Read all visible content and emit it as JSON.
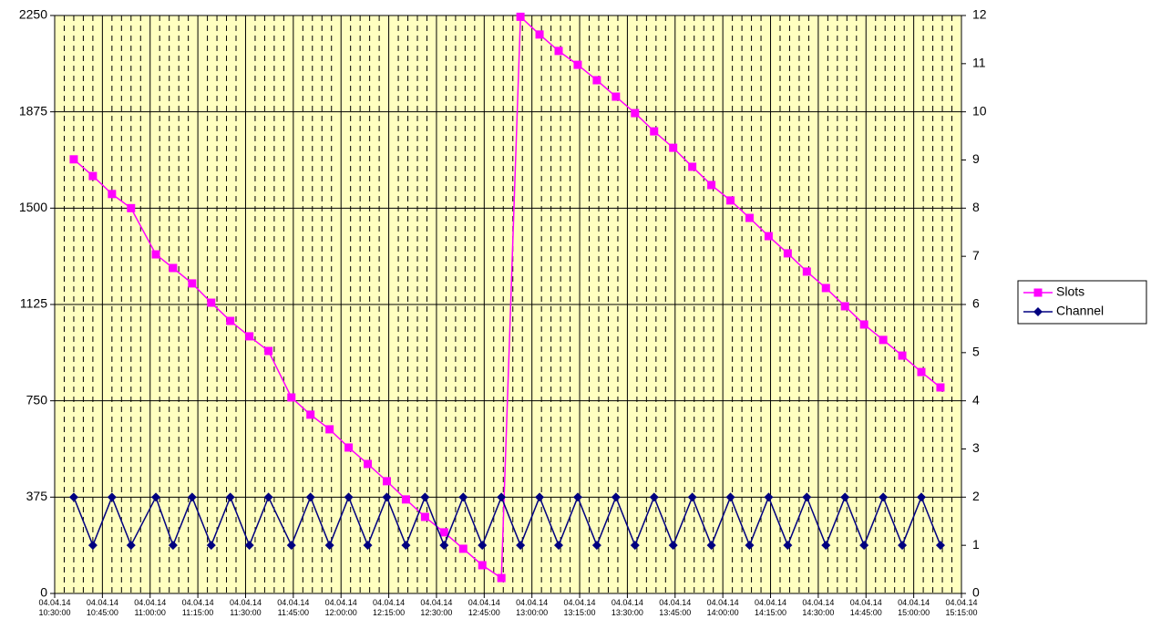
{
  "chart_data": {
    "type": "line",
    "x": [
      10.6,
      10.7,
      10.8,
      10.9,
      11.03,
      11.12,
      11.22,
      11.32,
      11.42,
      11.52,
      11.62,
      11.74,
      11.84,
      11.94,
      12.04,
      12.14,
      12.24,
      12.34,
      12.44,
      12.54,
      12.64,
      12.74,
      12.84,
      12.94,
      13.04,
      13.14,
      13.24,
      13.34,
      13.44,
      13.54,
      13.64,
      13.74,
      13.84,
      13.94,
      14.04,
      14.14,
      14.24,
      14.34,
      14.44,
      14.54,
      14.64,
      14.74,
      14.84,
      14.94,
      15.04,
      15.14
    ],
    "xlim": [
      10.5,
      15.25
    ],
    "xticks": [
      {
        "value": 10.5,
        "label": "04.04.14 10:30:00"
      },
      {
        "value": 10.75,
        "label": "04.04.14 10:45:00"
      },
      {
        "value": 11.0,
        "label": "04.04.14 11:00:00"
      },
      {
        "value": 11.25,
        "label": "04.04.14 11:15:00"
      },
      {
        "value": 11.5,
        "label": "04.04.14 11:30:00"
      },
      {
        "value": 11.75,
        "label": "04.04.14 11:45:00"
      },
      {
        "value": 12.0,
        "label": "04.04.14 12:00:00"
      },
      {
        "value": 12.25,
        "label": "04.04.14 12:15:00"
      },
      {
        "value": 12.5,
        "label": "04.04.14 12:30:00"
      },
      {
        "value": 12.75,
        "label": "04.04.14 12:45:00"
      },
      {
        "value": 13.0,
        "label": "04.04.14 13:00:00"
      },
      {
        "value": 13.25,
        "label": "04.04.14 13:15:00"
      },
      {
        "value": 13.5,
        "label": "04.04.14 13:30:00"
      },
      {
        "value": 13.75,
        "label": "04.04.14 13:45:00"
      },
      {
        "value": 14.0,
        "label": "04.04.14 14:00:00"
      },
      {
        "value": 14.25,
        "label": "04.04.14 14:15:00"
      },
      {
        "value": 14.5,
        "label": "04.04.14 14:30:00"
      },
      {
        "value": 14.75,
        "label": "04.04.14 14:45:00"
      },
      {
        "value": 15.0,
        "label": "04.04.14 15:00:00"
      },
      {
        "value": 15.25,
        "label": "04.04.14 15:15:00"
      }
    ],
    "ylim": [
      0,
      2250
    ],
    "yticks": [
      0,
      375,
      750,
      1125,
      1500,
      1875,
      2250
    ],
    "y2lim": [
      0,
      12
    ],
    "y2ticks": [
      0,
      1,
      2,
      3,
      4,
      5,
      6,
      7,
      8,
      9,
      10,
      11,
      12
    ],
    "grid": true,
    "legend": "right",
    "series": [
      {
        "name": "Slots",
        "color": "#ff00ff",
        "marker": "square",
        "values": [
          1690,
          1625,
          1555,
          1500,
          1320,
          1267,
          1207,
          1132,
          1061,
          1001,
          944,
          763,
          696,
          639,
          568,
          504,
          437,
          366,
          298,
          238,
          174,
          110,
          60,
          2245,
          2176,
          2112,
          2058,
          1998,
          1934,
          1870,
          1799,
          1735,
          1661,
          1590,
          1530,
          1462,
          1391,
          1324,
          1253,
          1189,
          1118,
          1047,
          987,
          926,
          862,
          802
        ]
      },
      {
        "name": "Channel",
        "color": "#000080",
        "marker": "diamond",
        "axis": "y2",
        "values": [
          2,
          1,
          2,
          1,
          2,
          1,
          2,
          1,
          2,
          1,
          2,
          1,
          2,
          1,
          2,
          1,
          2,
          1,
          2,
          1,
          2,
          1,
          2,
          1,
          2,
          1,
          2,
          1,
          2,
          1,
          2,
          1,
          2,
          1,
          2,
          1,
          2,
          1,
          2,
          1,
          2,
          1,
          2,
          1,
          2,
          1
        ]
      }
    ]
  }
}
